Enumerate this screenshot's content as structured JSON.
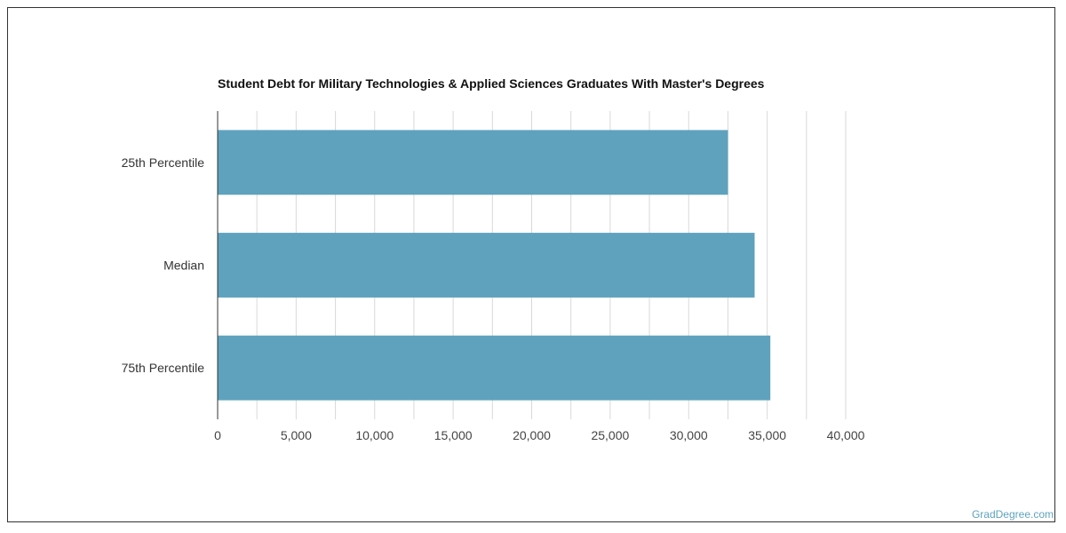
{
  "chart_data": {
    "type": "bar",
    "orientation": "horizontal",
    "title": "Student Debt for Military Technologies & Applied Sciences Graduates With Master's Degrees",
    "categories": [
      "25th Percentile",
      "Median",
      "75th Percentile"
    ],
    "values": [
      32500,
      34200,
      35200
    ],
    "xlim": [
      0,
      40000
    ],
    "ticks": [
      0,
      5000,
      10000,
      15000,
      20000,
      25000,
      30000,
      35000,
      40000
    ],
    "tick_labels": [
      "0",
      "5,000",
      "10,000",
      "15,000",
      "20,000",
      "25,000",
      "30,000",
      "35,000",
      "40,000"
    ],
    "grid": true,
    "bar_color": "#5ea2be",
    "grid_color": "#d9d9d9"
  },
  "watermark": "GradDegree.com"
}
